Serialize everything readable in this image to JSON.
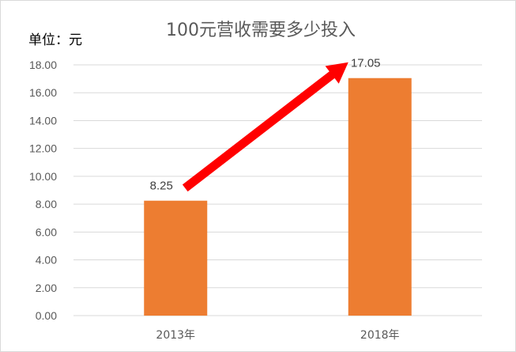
{
  "chart_data": {
    "type": "bar",
    "title": "100元营收需要多少投入",
    "unit_label": "单位：元",
    "categories": [
      "2013年",
      "2018年"
    ],
    "values": [
      8.25,
      17.05
    ],
    "data_labels": [
      "8.25",
      "17.05"
    ],
    "ylim": [
      0,
      18
    ],
    "yticks": [
      "0.00",
      "2.00",
      "4.00",
      "6.00",
      "8.00",
      "10.00",
      "12.00",
      "14.00",
      "16.00",
      "18.00"
    ],
    "grid": true,
    "legend": "none",
    "annotations": [
      {
        "type": "arrow",
        "from": "2013年",
        "to": "2018年",
        "color": "#ff0000"
      }
    ],
    "colors": {
      "bar": "#ed7d31",
      "grid": "#d9d9d9",
      "arrow": "#ff0000",
      "tick_text": "#595959"
    }
  }
}
